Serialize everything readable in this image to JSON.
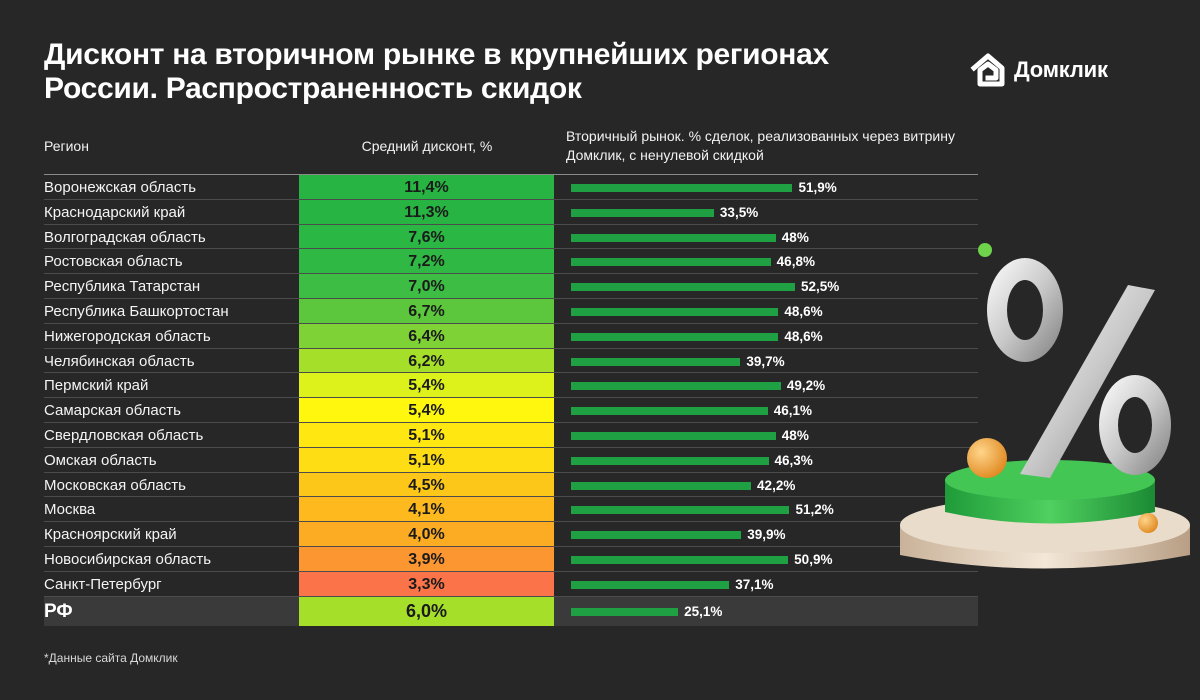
{
  "title": "Дисконт на вторичном рынке в крупнейших регионах России. Распространенность скидок",
  "brand": {
    "name": "Домклик",
    "icon": "domclick-house-icon"
  },
  "headers": {
    "region": "Регион",
    "discount": "Средний дисконт, %",
    "share": "Вторичный рынок. % сделок, реализованных через витрину Домклик, с ненулевой скидкой"
  },
  "footnote": "*Данные сайта Домклик",
  "decoration": {
    "icon": "percent-3d-illustration",
    "colors": {
      "bar": "#1fa043",
      "platform": "#2fb34a",
      "ball": "#f1a43c"
    }
  },
  "chart_data": {
    "type": "table",
    "columns": [
      "Регион",
      "Средний дисконт, %",
      "Вторичный рынок. % сделок, реализованных через витрину Домклик, с ненулевой скидкой"
    ],
    "rows": [
      {
        "region": "Воронежская область",
        "discount_label": "11,4%",
        "discount": 11.4,
        "share_label": "51,9%",
        "share": 51.9,
        "color": "#27b442"
      },
      {
        "region": "Краснодарский край",
        "discount_label": "11,3%",
        "discount": 11.3,
        "share_label": "33,5%",
        "share": 33.5,
        "color": "#27b442"
      },
      {
        "region": "Волгоградская область",
        "discount_label": "7,6%",
        "discount": 7.6,
        "share_label": "48%",
        "share": 48.0,
        "color": "#2bb744"
      },
      {
        "region": "Ростовская область",
        "discount_label": "7,2%",
        "discount": 7.2,
        "share_label": "46,8%",
        "share": 46.8,
        "color": "#2fb944"
      },
      {
        "region": "Республика Татарстан",
        "discount_label": "7,0%",
        "discount": 7.0,
        "share_label": "52,5%",
        "share": 52.5,
        "color": "#3dbd43"
      },
      {
        "region": "Республика Башкортостан",
        "discount_label": "6,7%",
        "discount": 6.7,
        "share_label": "48,6%",
        "share": 48.6,
        "color": "#5cc73d"
      },
      {
        "region": "Нижегородская область",
        "discount_label": "6,4%",
        "discount": 6.4,
        "share_label": "48,6%",
        "share": 48.6,
        "color": "#7fd236"
      },
      {
        "region": "Челябинская область",
        "discount_label": "6,2%",
        "discount": 6.2,
        "share_label": "39,7%",
        "share": 39.7,
        "color": "#a6df2a"
      },
      {
        "region": "Пермский край",
        "discount_label": "5,4%",
        "discount": 5.4,
        "share_label": "49,2%",
        "share": 49.2,
        "color": "#ddf11a"
      },
      {
        "region": "Самарская область",
        "discount_label": "5,4%",
        "discount": 5.4,
        "share_label": "46,1%",
        "share": 46.1,
        "color": "#fff70d"
      },
      {
        "region": "Свердловская область",
        "discount_label": "5,1%",
        "discount": 5.1,
        "share_label": "48%",
        "share": 48.0,
        "color": "#ffe812"
      },
      {
        "region": "Омская область",
        "discount_label": "5,1%",
        "discount": 5.1,
        "share_label": "46,3%",
        "share": 46.3,
        "color": "#fedd15"
      },
      {
        "region": "Московская область",
        "discount_label": "4,5%",
        "discount": 4.5,
        "share_label": "42,2%",
        "share": 42.2,
        "color": "#fdc71a"
      },
      {
        "region": "Москва",
        "discount_label": "4,1%",
        "discount": 4.1,
        "share_label": "51,2%",
        "share": 51.2,
        "color": "#fdb91d"
      },
      {
        "region": "Красноярский край",
        "discount_label": "4,0%",
        "discount": 4.0,
        "share_label": "39,9%",
        "share": 39.9,
        "color": "#fcac22"
      },
      {
        "region": "Новосибирская область",
        "discount_label": "3,9%",
        "discount": 3.9,
        "share_label": "50,9%",
        "share": 50.9,
        "color": "#fc9631"
      },
      {
        "region": "Санкт-Петербург",
        "discount_label": "3,3%",
        "discount": 3.3,
        "share_label": "37,1%",
        "share": 37.1,
        "color": "#fb7349"
      }
    ],
    "total": {
      "region": "РФ",
      "discount_label": "6,0%",
      "discount": 6.0,
      "share_label": "25,1%",
      "share": 25.1,
      "color": "#a6df2a"
    }
  }
}
